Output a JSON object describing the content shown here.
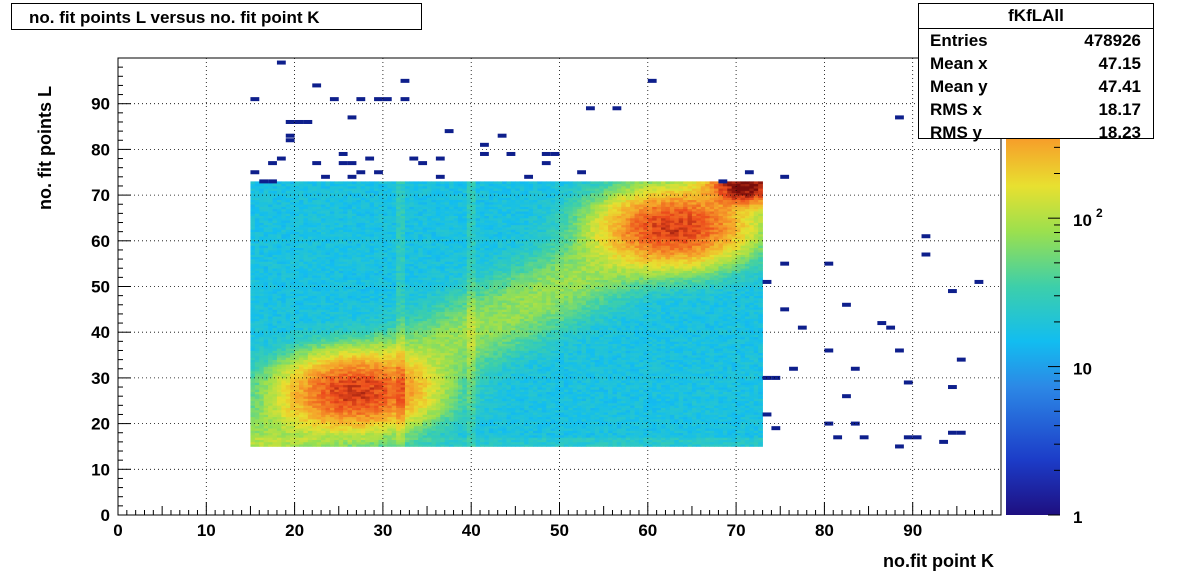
{
  "title": "no. fit points L versus no. fit point K",
  "stats": {
    "name": "fKfLAll",
    "rows": [
      {
        "label": "Entries",
        "value": "478926"
      },
      {
        "label": "Mean x",
        "value": "47.15"
      },
      {
        "label": "Mean y",
        "value": "47.41"
      },
      {
        "label": "RMS x",
        "value": "18.17"
      },
      {
        "label": "RMS y",
        "value": "18.23"
      }
    ]
  },
  "chart_data": {
    "type": "heatmap",
    "title": "no. fit points L versus no. fit point K",
    "xlabel": "no.fit point K",
    "ylabel": "no. fit points  L",
    "xlim": [
      0,
      100
    ],
    "ylim": [
      0,
      100
    ],
    "x_ticks": [
      "0",
      "10",
      "20",
      "30",
      "40",
      "50",
      "60",
      "70",
      "80",
      "90"
    ],
    "y_ticks": [
      "0",
      "10",
      "20",
      "30",
      "40",
      "50",
      "60",
      "70",
      "80",
      "90"
    ],
    "grid": true,
    "color_scale": "log",
    "colorbar_ticks": [
      {
        "value": 1,
        "label": "1"
      },
      {
        "value": 10,
        "label": "10"
      },
      {
        "value": 100,
        "label": "10^2"
      }
    ],
    "colorbar_zmax": 1200,
    "dense_region": {
      "x_range": [
        15,
        73
      ],
      "y_range": [
        15,
        73
      ],
      "background_count": 18,
      "diagonal_band_count": 60,
      "peaks": [
        {
          "x": 27,
          "y": 27,
          "count": 700
        },
        {
          "x": 63,
          "y": 63,
          "count": 700
        },
        {
          "x": 71,
          "y": 72,
          "count": 1200
        }
      ]
    },
    "sparse_points": [
      [
        18,
        99
      ],
      [
        22,
        94
      ],
      [
        32,
        95
      ],
      [
        60,
        95
      ],
      [
        15,
        91
      ],
      [
        24,
        91
      ],
      [
        27,
        91
      ],
      [
        29,
        91
      ],
      [
        30,
        91
      ],
      [
        32,
        91
      ],
      [
        53,
        89
      ],
      [
        56,
        89
      ],
      [
        88,
        87
      ],
      [
        26,
        87
      ],
      [
        19,
        86
      ],
      [
        20,
        86
      ],
      [
        21,
        86
      ],
      [
        37,
        84
      ],
      [
        19,
        83
      ],
      [
        43,
        83
      ],
      [
        19,
        82
      ],
      [
        41,
        81
      ],
      [
        41,
        79
      ],
      [
        44,
        79
      ],
      [
        48,
        79
      ],
      [
        49,
        79
      ],
      [
        25,
        79
      ],
      [
        18,
        78
      ],
      [
        22,
        77
      ],
      [
        25,
        77
      ],
      [
        26,
        77
      ],
      [
        28,
        78
      ],
      [
        33,
        78
      ],
      [
        34,
        77
      ],
      [
        36,
        78
      ],
      [
        48,
        77
      ],
      [
        17,
        77
      ],
      [
        15,
        75
      ],
      [
        23,
        74
      ],
      [
        26,
        74
      ],
      [
        27,
        75
      ],
      [
        29,
        75
      ],
      [
        36,
        74
      ],
      [
        46,
        74
      ],
      [
        52,
        75
      ],
      [
        71,
        75
      ],
      [
        75,
        74
      ],
      [
        16,
        73
      ],
      [
        17,
        73
      ],
      [
        68,
        73
      ],
      [
        91,
        61
      ],
      [
        91,
        57
      ],
      [
        73,
        51
      ],
      [
        97,
        51
      ],
      [
        94,
        49
      ],
      [
        75,
        55
      ],
      [
        80,
        55
      ],
      [
        82,
        46
      ],
      [
        75,
        45
      ],
      [
        86,
        42
      ],
      [
        87,
        41
      ],
      [
        77,
        41
      ],
      [
        80,
        36
      ],
      [
        88,
        36
      ],
      [
        95,
        34
      ],
      [
        76,
        32
      ],
      [
        83,
        32
      ],
      [
        89,
        29
      ],
      [
        73,
        30
      ],
      [
        74,
        30
      ],
      [
        94,
        28
      ],
      [
        82,
        26
      ],
      [
        73,
        22
      ],
      [
        80,
        20
      ],
      [
        83,
        20
      ],
      [
        74,
        19
      ],
      [
        94,
        18
      ],
      [
        95,
        18
      ],
      [
        81,
        17
      ],
      [
        84,
        17
      ],
      [
        89,
        17
      ],
      [
        90,
        17
      ],
      [
        93,
        16
      ],
      [
        88,
        15
      ]
    ]
  }
}
